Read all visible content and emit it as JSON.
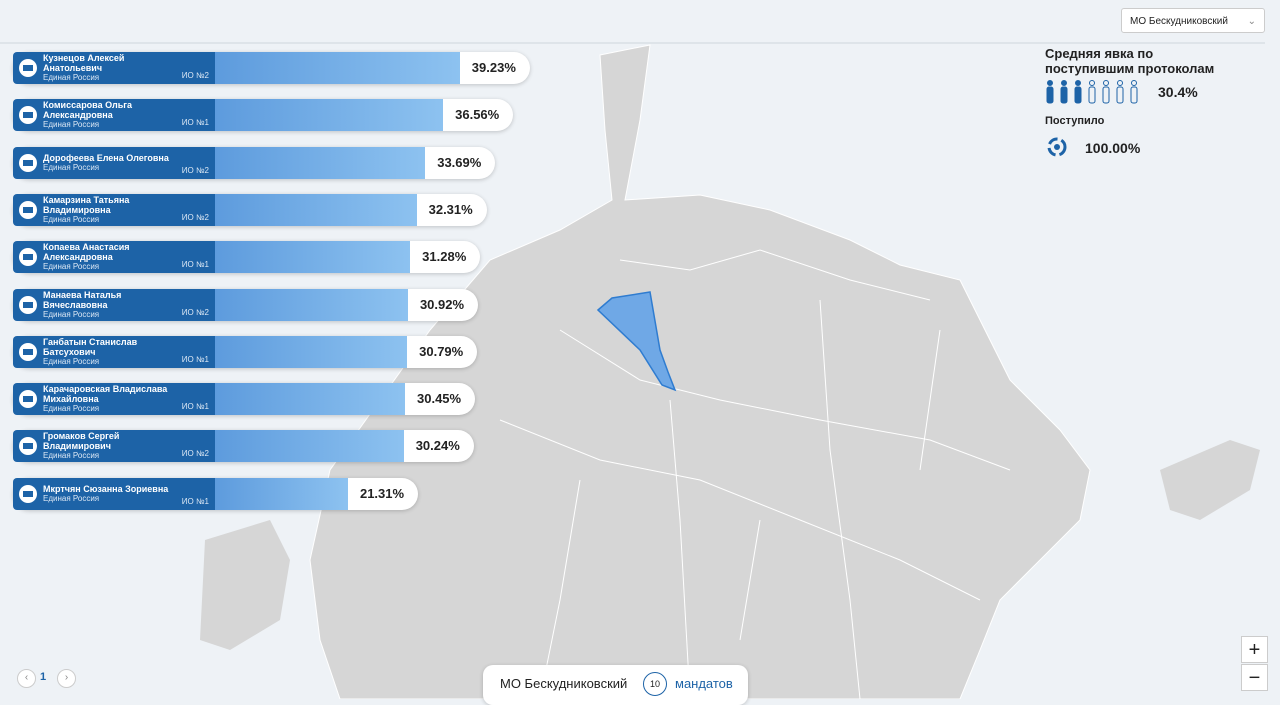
{
  "region_select": "МО Бескудниковский",
  "candidates": [
    {
      "name": "Кузнецов Алексей Анатольевич",
      "party": "Единая Россия",
      "district": "ИО №2",
      "percent": 39.23,
      "percent_label": "39.23%"
    },
    {
      "name": "Комиссарова Ольга Александровна",
      "party": "Единая Россия",
      "district": "ИО №1",
      "percent": 36.56,
      "percent_label": "36.56%"
    },
    {
      "name": "Дорофеева Елена Олеговна",
      "party": "Единая Россия",
      "district": "ИО №2",
      "percent": 33.69,
      "percent_label": "33.69%"
    },
    {
      "name": "Камарзина Татьяна Владимировна",
      "party": "Единая Россия",
      "district": "ИО №2",
      "percent": 32.31,
      "percent_label": "32.31%"
    },
    {
      "name": "Копаева Анастасия Александровна",
      "party": "Единая Россия",
      "district": "ИО №1",
      "percent": 31.28,
      "percent_label": "31.28%"
    },
    {
      "name": "Манаева Наталья Вячеславовна",
      "party": "Единая Россия",
      "district": "ИО №2",
      "percent": 30.92,
      "percent_label": "30.92%"
    },
    {
      "name": "Ганбатын Станислав Батсухович",
      "party": "Единая Россия",
      "district": "ИО №1",
      "percent": 30.79,
      "percent_label": "30.79%"
    },
    {
      "name": "Карачаровская Владислава Михайловна",
      "party": "Единая Россия",
      "district": "ИО №1",
      "percent": 30.45,
      "percent_label": "30.45%"
    },
    {
      "name": "Громаков Сергей Владимирович",
      "party": "Единая Россия",
      "district": "ИО №2",
      "percent": 30.24,
      "percent_label": "30.24%"
    },
    {
      "name": "Мкртчян Сюзанна Зориевна",
      "party": "Единая Россия",
      "district": "ИО №1",
      "percent": 21.31,
      "percent_label": "21.31%"
    }
  ],
  "turnout": {
    "title": "Средняя явка по поступившим протоколам",
    "value_label": "30.4%"
  },
  "received": {
    "title": "Поступило",
    "value_label": "100.00%"
  },
  "pagination": {
    "page": "1"
  },
  "footer": {
    "district": "МО Бескудниковский",
    "mandates": "10",
    "mandates_label": "мандатов"
  }
}
